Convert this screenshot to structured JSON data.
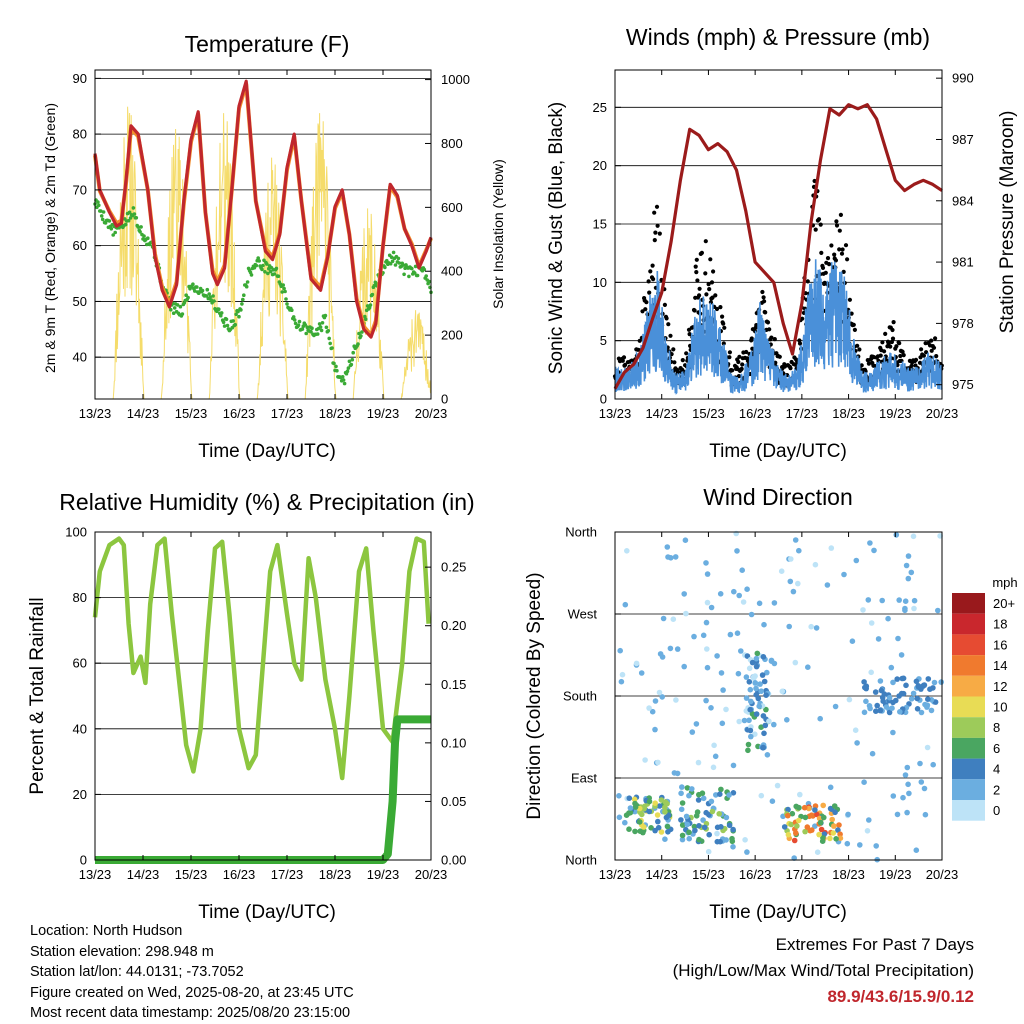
{
  "info": {
    "location": "Location: North Hudson",
    "elevation": "Station elevation: 298.948 m",
    "latlon": "Station lat/lon: 44.0131; -73.7052",
    "created": "Figure created on Wed, 2025-08-20, at 23:45 UTC",
    "recent": "Most recent data timestamp: 2025/08/20 23:15:00"
  },
  "extremes": {
    "title": "Extremes For Past 7 Days",
    "subtitle": "(High/Low/Max Wind/Total Precipitation)",
    "values": "89.9/43.6/15.9/0.12",
    "color": "#c0272d"
  },
  "chart_data": [
    {
      "id": "temperature",
      "type": "line",
      "title": "Temperature (F)",
      "xlabel": "Time (Day/UTC)",
      "ylabel_left": "2m & 9m T (Red, Orange) & 2m Td (Green)",
      "ylabel_right": "Solar Insolation (Yellow)",
      "x_ticks": [
        "13/23",
        "14/23",
        "15/23",
        "16/23",
        "17/23",
        "18/23",
        "19/23",
        "20/23"
      ],
      "y_left_ticks": [
        40,
        50,
        60,
        70,
        80,
        90
      ],
      "y_right_ticks": [
        0,
        200,
        400,
        600,
        800,
        1000
      ],
      "ylim_left": [
        32.5,
        91.5
      ],
      "ylim_right": [
        0,
        1030
      ],
      "xlim": [
        0,
        7
      ],
      "grid": true,
      "series": [
        {
          "name": "2m T",
          "color": "#c0272d",
          "x": [
            0,
            0.1,
            0.3,
            0.45,
            0.55,
            0.65,
            0.75,
            0.9,
            1.1,
            1.25,
            1.4,
            1.55,
            1.7,
            1.85,
            2.0,
            2.15,
            2.3,
            2.45,
            2.55,
            2.7,
            2.85,
            3.0,
            3.15,
            3.35,
            3.55,
            3.7,
            3.85,
            4.0,
            4.15,
            4.3,
            4.5,
            4.7,
            4.85,
            5.0,
            5.15,
            5.3,
            5.45,
            5.6,
            5.75,
            5.85,
            6.0,
            6.15,
            6.3,
            6.45,
            6.6,
            6.75,
            6.9,
            7.0
          ],
          "y": [
            76.5,
            70,
            66,
            63.5,
            64,
            72,
            81.5,
            80,
            70,
            58,
            52,
            49,
            53,
            68,
            79,
            84,
            66,
            55,
            53,
            56,
            70,
            85,
            89.5,
            68,
            59,
            57.5,
            62,
            74,
            80,
            68,
            54,
            52,
            58,
            67,
            70,
            62,
            50,
            45,
            43.6,
            46,
            60,
            71,
            69,
            63,
            60,
            56,
            59,
            61.5
          ]
        },
        {
          "name": "9m T",
          "color": "#f28e2b",
          "x": [
            0,
            0.1,
            0.3,
            0.45,
            0.55,
            0.65,
            0.75,
            0.9,
            1.1,
            1.25,
            1.4,
            1.55,
            1.7,
            1.85,
            2.0,
            2.15,
            2.3,
            2.45,
            2.55,
            2.7,
            2.85,
            3.0,
            3.15,
            3.35,
            3.55,
            3.7,
            3.85,
            4.0,
            4.15,
            4.3,
            4.5,
            4.7,
            4.85,
            5.0,
            5.15,
            5.3,
            5.45,
            5.6,
            5.75,
            5.85,
            6.0,
            6.15,
            6.3,
            6.45,
            6.6,
            6.75,
            6.9,
            7.0
          ],
          "y": [
            76.2,
            69.8,
            66.2,
            64,
            64.5,
            71.5,
            81,
            79.6,
            70,
            58.5,
            52.5,
            49.5,
            53.5,
            67.5,
            78.6,
            83.6,
            66,
            55.5,
            53.5,
            56.5,
            70,
            84.6,
            89,
            68,
            59.5,
            58,
            62.3,
            73.6,
            79.6,
            68,
            54.5,
            52.5,
            58.3,
            66.7,
            69.6,
            62,
            50.5,
            45.5,
            44,
            46.5,
            60,
            70.6,
            68.7,
            63,
            60.3,
            56.3,
            59.2,
            61.3
          ]
        },
        {
          "name": "2m Td",
          "color": "#3aaa35",
          "x": [
            0,
            0.2,
            0.4,
            0.6,
            0.8,
            1.0,
            1.2,
            1.4,
            1.6,
            1.8,
            2.0,
            2.2,
            2.4,
            2.6,
            2.8,
            3.0,
            3.2,
            3.4,
            3.6,
            3.8,
            4.0,
            4.2,
            4.4,
            4.6,
            4.8,
            5.0,
            5.2,
            5.4,
            5.6,
            5.8,
            6.0,
            6.2,
            6.4,
            6.6,
            6.8,
            7.0
          ],
          "y": [
            68,
            65,
            62.5,
            64,
            66,
            62,
            60,
            53,
            49,
            48,
            53,
            52,
            51,
            48,
            45,
            48,
            55,
            57,
            56,
            55,
            50,
            46,
            45,
            44,
            47,
            38,
            36,
            41,
            46,
            52,
            56,
            58,
            56,
            55,
            56,
            52
          ]
        },
        {
          "name": "Solar Insolation",
          "color": "#f5dc6b",
          "axis": "right",
          "peak_days": [
            0.7,
            1.7,
            2.7,
            3.7,
            4.7,
            5.7,
            6.7
          ],
          "peak_values": [
            920,
            850,
            900,
            760,
            900,
            600,
            280
          ]
        }
      ]
    },
    {
      "id": "winds",
      "type": "line",
      "title": "Winds (mph) & Pressure (mb)",
      "xlabel": "Time (Day/UTC)",
      "ylabel_left": "Sonic Wind & Gust (Blue, Black)",
      "ylabel_right": "Station Pressure (Maroon)",
      "x_ticks": [
        "13/23",
        "14/23",
        "15/23",
        "16/23",
        "17/23",
        "18/23",
        "19/23",
        "20/23"
      ],
      "y_left_ticks": [
        0,
        5,
        10,
        15,
        20,
        25
      ],
      "y_right_ticks": [
        975,
        978,
        981,
        984,
        987,
        990
      ],
      "ylim_left": [
        0,
        28.2
      ],
      "ylim_right": [
        974.3,
        990.4
      ],
      "xlim": [
        0,
        7
      ],
      "grid": true,
      "series": [
        {
          "name": "Station Pressure",
          "color": "#9b1b1b",
          "axis": "right",
          "x": [
            0,
            0.2,
            0.4,
            0.6,
            0.8,
            1.0,
            1.2,
            1.4,
            1.6,
            1.8,
            2.0,
            2.2,
            2.4,
            2.6,
            2.8,
            3.0,
            3.2,
            3.4,
            3.6,
            3.8,
            4.0,
            4.2,
            4.4,
            4.6,
            4.8,
            5.0,
            5.2,
            5.4,
            5.6,
            5.8,
            6.0,
            6.2,
            6.4,
            6.6,
            6.8,
            7.0
          ],
          "y": [
            974.8,
            975.6,
            976.0,
            976.8,
            978.2,
            979.5,
            982.0,
            985.0,
            987.5,
            987.2,
            986.5,
            986.8,
            986.4,
            985.5,
            983.5,
            981.0,
            980.5,
            980.0,
            978.0,
            976.5,
            979.0,
            983.0,
            986.0,
            988.5,
            988.2,
            988.7,
            988.5,
            988.7,
            988.0,
            986.5,
            985.0,
            984.5,
            984.8,
            985.0,
            984.8,
            984.5
          ]
        },
        {
          "name": "Sonic Wind",
          "color": "#4a90d9",
          "x": [
            0,
            0.3,
            0.5,
            0.7,
            0.9,
            1.1,
            1.3,
            1.5,
            1.7,
            1.9,
            2.1,
            2.3,
            2.5,
            2.7,
            2.9,
            3.1,
            3.3,
            3.5,
            3.7,
            3.9,
            4.1,
            4.3,
            4.5,
            4.7,
            4.9,
            5.1,
            5.3,
            5.5,
            5.7,
            5.9,
            6.1,
            6.3,
            6.5,
            6.7,
            6.9,
            7.0
          ],
          "y": [
            2,
            2,
            3,
            6,
            8,
            4,
            1.5,
            2,
            5,
            7,
            6,
            4,
            1.5,
            1.5,
            3,
            6,
            4,
            2,
            1.5,
            2,
            6,
            9,
            7,
            9,
            8,
            4,
            1.5,
            2,
            2.5,
            3,
            2.5,
            2,
            2,
            3,
            2.5,
            2
          ]
        },
        {
          "name": "Gust",
          "color": "#000000",
          "x": [
            0,
            0.3,
            0.5,
            0.7,
            0.9,
            1.1,
            1.3,
            1.5,
            1.7,
            1.9,
            2.1,
            2.3,
            2.5,
            2.7,
            2.9,
            3.1,
            3.3,
            3.5,
            3.7,
            3.9,
            4.1,
            4.3,
            4.5,
            4.7,
            4.9,
            5.1,
            5.3,
            5.5,
            5.7,
            5.9,
            6.1,
            6.3,
            6.5,
            6.7,
            6.9,
            7.0
          ],
          "y": [
            3,
            3,
            4,
            9,
            15,
            6,
            2.5,
            3,
            9,
            12,
            9,
            6,
            2.5,
            3,
            4,
            8,
            6,
            3,
            2.5,
            3,
            10,
            15.9,
            10,
            14,
            12,
            6,
            2.5,
            3,
            4,
            6,
            4,
            3,
            3,
            5,
            4,
            3
          ]
        }
      ]
    },
    {
      "id": "humidity",
      "type": "line",
      "title": "Relative Humidity (%) & Precipitation (in)",
      "xlabel": "Time (Day/UTC)",
      "ylabel_left": "Percent & Total Rainfall",
      "x_ticks": [
        "13/23",
        "14/23",
        "15/23",
        "16/23",
        "17/23",
        "18/23",
        "19/23",
        "20/23"
      ],
      "y_left_ticks": [
        0,
        20,
        40,
        60,
        80,
        100
      ],
      "y_right_ticks": [
        "0.00",
        "0.05",
        "0.10",
        "0.15",
        "0.20",
        "0.25"
      ],
      "ylim_left": [
        0,
        100
      ],
      "ylim_right": [
        0,
        0.28
      ],
      "xlim": [
        0,
        7
      ],
      "grid": true,
      "series": [
        {
          "name": "Relative Humidity",
          "color": "#8cc63f",
          "x": [
            0,
            0.1,
            0.3,
            0.5,
            0.6,
            0.7,
            0.8,
            0.95,
            1.05,
            1.15,
            1.3,
            1.45,
            1.6,
            1.75,
            1.9,
            2.05,
            2.2,
            2.35,
            2.5,
            2.65,
            2.8,
            3.0,
            3.2,
            3.35,
            3.5,
            3.65,
            3.8,
            4.0,
            4.15,
            4.3,
            4.45,
            4.6,
            4.8,
            5.0,
            5.15,
            5.3,
            5.5,
            5.65,
            5.8,
            6.0,
            6.2,
            6.4,
            6.55,
            6.7,
            6.85,
            6.95
          ],
          "y": [
            74,
            88,
            96,
            98,
            96,
            72,
            57,
            62,
            54,
            78,
            96,
            98,
            75,
            55,
            35,
            27,
            40,
            70,
            95,
            97,
            75,
            40,
            28,
            32,
            60,
            88,
            96,
            75,
            60,
            55,
            92,
            80,
            55,
            40,
            25,
            50,
            88,
            95,
            70,
            40,
            36,
            60,
            88,
            98,
            97,
            72
          ]
        },
        {
          "name": "Total Rainfall",
          "color": "#3aaa35",
          "axis": "right",
          "x": [
            0,
            6.0,
            6.1,
            6.2,
            6.25,
            6.3,
            6.5,
            7.0
          ],
          "y": [
            0,
            0,
            0.005,
            0.05,
            0.1,
            0.12,
            0.12,
            0.12
          ]
        }
      ]
    },
    {
      "id": "direction",
      "type": "scatter",
      "title": "Wind Direction",
      "xlabel": "Time (Day/UTC)",
      "ylabel_left": "Direction (Colored By Speed)",
      "x_ticks": [
        "13/23",
        "14/23",
        "15/23",
        "16/23",
        "17/23",
        "18/23",
        "19/23",
        "20/23"
      ],
      "y_ticks": [
        "North",
        "East",
        "South",
        "West",
        "North"
      ],
      "y_tick_values": [
        0,
        90,
        180,
        270,
        360
      ],
      "ylim": [
        0,
        360
      ],
      "xlim": [
        0,
        7
      ],
      "grid": true,
      "colorbar": {
        "title": "mph",
        "labels": [
          "20+",
          "18",
          "16",
          "14",
          "12",
          "10",
          "8",
          "6",
          "4",
          "2",
          "0"
        ],
        "colors": [
          "#99191c",
          "#c9272d",
          "#e64b32",
          "#f07a2e",
          "#f7ab45",
          "#e8dc55",
          "#9dcb5a",
          "#4aa661",
          "#3f7fbf",
          "#6baee0",
          "#bde3f7"
        ]
      },
      "clusters": [
        {
          "x": [
            0,
            7
          ],
          "dir": [
            300,
            360
          ],
          "speed": [
            0,
            3
          ]
        },
        {
          "x": [
            0.2,
            1.2
          ],
          "dir": [
            30,
            70
          ],
          "speed": [
            2,
            10
          ]
        },
        {
          "x": [
            1.4,
            2.6
          ],
          "dir": [
            20,
            80
          ],
          "speed": [
            2,
            8
          ]
        },
        {
          "x": [
            2.8,
            3.3
          ],
          "dir": [
            120,
            230
          ],
          "speed": [
            0,
            6
          ]
        },
        {
          "x": [
            3.6,
            4.9
          ],
          "dir": [
            20,
            60
          ],
          "speed": [
            4,
            16
          ]
        },
        {
          "x": [
            5.3,
            6.9
          ],
          "dir": [
            160,
            200
          ],
          "speed": [
            2,
            5
          ]
        }
      ]
    }
  ]
}
